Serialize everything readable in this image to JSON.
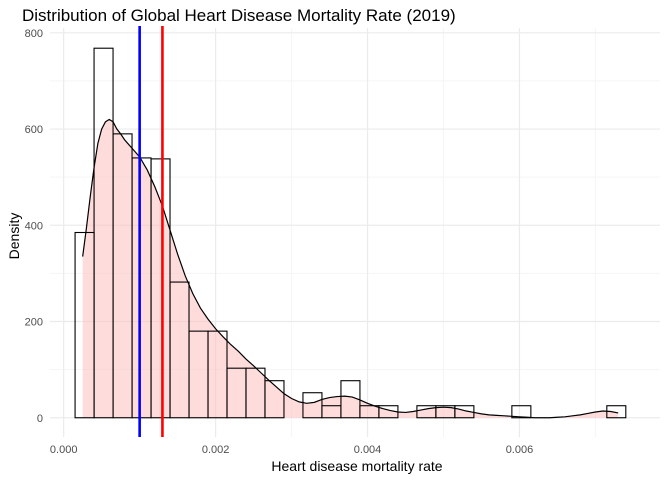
{
  "chart_data": {
    "type": "histogram",
    "title": "Distribution of Global Heart Disease Mortality Rate (2019)",
    "xlabel": "Heart disease mortality rate",
    "ylabel": "Density",
    "xlim": [
      -0.00018,
      0.00785
    ],
    "ylim": [
      -40,
      810
    ],
    "x_ticks": [
      0.0,
      0.002,
      0.004,
      0.006
    ],
    "x_tick_labels": [
      "0.000",
      "0.002",
      "0.004",
      "0.006"
    ],
    "y_ticks": [
      0,
      200,
      400,
      600,
      800
    ],
    "y_tick_labels": [
      "0",
      "200",
      "400",
      "600",
      "800"
    ],
    "grid": true,
    "bin_width": 0.00025,
    "bin_starts": [
      0.00015,
      0.0004,
      0.00065,
      0.0009,
      0.00115,
      0.0014,
      0.00165,
      0.0019,
      0.00215,
      0.0024,
      0.00265,
      0.0029,
      0.00315,
      0.0034,
      0.00365,
      0.0039,
      0.00415,
      0.0044,
      0.00465,
      0.0049,
      0.00515,
      0.0054,
      0.00565,
      0.0059,
      0.00615,
      0.0064,
      0.00665,
      0.0069,
      0.00715
    ],
    "bar_heights": [
      385,
      768,
      590,
      540,
      538,
      282,
      180,
      180,
      103,
      103,
      77,
      0,
      52,
      25,
      77,
      25,
      25,
      0,
      25,
      25,
      25,
      0,
      0,
      25,
      0,
      0,
      0,
      0,
      25
    ],
    "density_curve": {
      "x": [
        0.00025,
        0.0003,
        0.00035,
        0.0004,
        0.00045,
        0.0005,
        0.00055,
        0.0006,
        0.00065,
        0.0007,
        0.00075,
        0.0008,
        0.0009,
        0.001,
        0.0011,
        0.0012,
        0.0013,
        0.0014,
        0.0015,
        0.0016,
        0.0017,
        0.0018,
        0.0019,
        0.002,
        0.0021,
        0.0022,
        0.0023,
        0.0024,
        0.0025,
        0.0026,
        0.0027,
        0.0028,
        0.0029,
        0.003,
        0.0031,
        0.0032,
        0.0033,
        0.0034,
        0.0035,
        0.0036,
        0.0037,
        0.0038,
        0.0039,
        0.004,
        0.0041,
        0.0042,
        0.0043,
        0.0044,
        0.0045,
        0.0046,
        0.0047,
        0.0048,
        0.0049,
        0.005,
        0.0051,
        0.0052,
        0.0053,
        0.0054,
        0.0055,
        0.0056,
        0.0057,
        0.0058,
        0.0059,
        0.006,
        0.0061,
        0.0062,
        0.0063,
        0.0064,
        0.0065,
        0.0066,
        0.0067,
        0.0068,
        0.0069,
        0.007,
        0.0071,
        0.0072,
        0.0073
      ],
      "y": [
        335,
        395,
        460,
        520,
        570,
        600,
        615,
        620,
        615,
        600,
        590,
        578,
        560,
        542,
        515,
        480,
        440,
        390,
        340,
        295,
        258,
        228,
        205,
        185,
        168,
        152,
        138,
        122,
        108,
        93,
        78,
        64,
        50,
        40,
        33,
        30,
        32,
        38,
        42,
        44,
        45,
        43,
        37,
        30,
        24,
        19,
        15,
        12,
        11,
        13,
        16,
        19,
        21,
        22,
        21,
        18,
        14,
        11,
        8,
        6,
        5,
        4,
        3,
        2,
        1,
        0,
        0,
        0,
        1,
        2,
        4,
        6,
        9,
        12,
        14,
        13,
        10
      ]
    },
    "vlines": [
      {
        "x": 0.001,
        "color": "#0000ff"
      },
      {
        "x": 0.0013,
        "color": "#ff0000"
      }
    ],
    "colors": {
      "density_fill": "#ffc0c0",
      "density_fill_opacity": 0.55,
      "bar_stroke": "#000000",
      "curve_stroke": "#000000",
      "grid_major": "#ebebeb",
      "grid_minor": "#f5f5f5"
    }
  }
}
